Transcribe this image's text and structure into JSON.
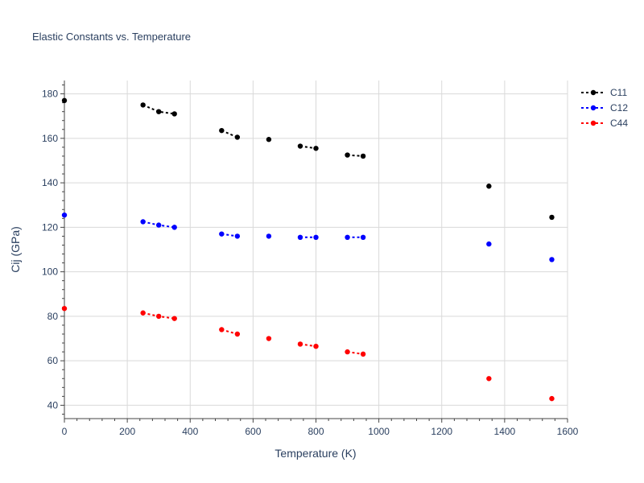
{
  "chart_data": {
    "type": "line",
    "title": "Elastic Constants vs. Temperature",
    "xlabel": "Temperature (K)",
    "ylabel": "Cij (GPa)",
    "xlim": [
      0,
      1600
    ],
    "ylim": [
      34,
      186
    ],
    "xticks": [
      0,
      200,
      400,
      600,
      800,
      1000,
      1200,
      1400,
      1600
    ],
    "yticks": [
      40,
      60,
      80,
      100,
      120,
      140,
      160,
      180
    ],
    "grid": true,
    "legend_position": "top-right",
    "series": [
      {
        "name": "C11",
        "color": "#000000",
        "points": [
          [
            0,
            177
          ],
          [
            250,
            175
          ],
          [
            300,
            172
          ],
          [
            350,
            171
          ],
          [
            500,
            163.5
          ],
          [
            550,
            160.5
          ],
          [
            650,
            159.5
          ],
          [
            750,
            156.5
          ],
          [
            800,
            155.5
          ],
          [
            900,
            152.5
          ],
          [
            950,
            152
          ],
          [
            1350,
            138.5
          ],
          [
            1550,
            124.5
          ]
        ],
        "segments": [
          [
            250,
            300,
            350
          ],
          [
            500,
            550
          ],
          [
            750,
            800
          ],
          [
            900,
            950
          ]
        ]
      },
      {
        "name": "C12",
        "color": "#0000ff",
        "points": [
          [
            0,
            125.5
          ],
          [
            250,
            122.5
          ],
          [
            300,
            121
          ],
          [
            350,
            120
          ],
          [
            500,
            117
          ],
          [
            550,
            116
          ],
          [
            650,
            116
          ],
          [
            750,
            115.5
          ],
          [
            800,
            115.5
          ],
          [
            900,
            115.5
          ],
          [
            950,
            115.5
          ],
          [
            1350,
            112.5
          ],
          [
            1550,
            105.5
          ]
        ],
        "segments": [
          [
            250,
            300,
            350
          ],
          [
            500,
            550
          ],
          [
            750,
            800
          ],
          [
            900,
            950
          ]
        ]
      },
      {
        "name": "C44",
        "color": "#ff0000",
        "points": [
          [
            0,
            83.5
          ],
          [
            250,
            81.5
          ],
          [
            300,
            80
          ],
          [
            350,
            79
          ],
          [
            500,
            74
          ],
          [
            550,
            72
          ],
          [
            650,
            70
          ],
          [
            750,
            67.5
          ],
          [
            800,
            66.5
          ],
          [
            900,
            64
          ],
          [
            950,
            63
          ],
          [
            1350,
            52
          ],
          [
            1550,
            43
          ]
        ],
        "segments": [
          [
            250,
            300,
            350
          ],
          [
            500,
            550
          ],
          [
            750,
            800
          ],
          [
            900,
            950
          ]
        ]
      }
    ]
  }
}
